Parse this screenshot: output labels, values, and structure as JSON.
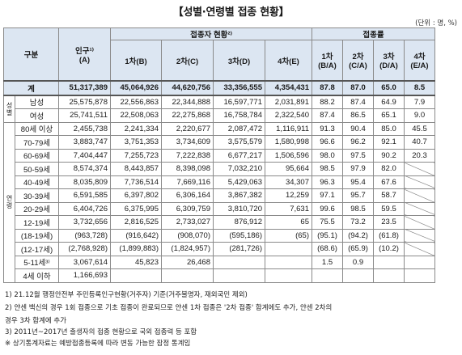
{
  "title": "【성별·연령별 접종 현황】",
  "unit": "(단위 : 명, %)",
  "headers": {
    "category": "구분",
    "population": "인구¹⁾",
    "population_sub": "(A)",
    "vaccinated_group": "접종자 현황²⁾",
    "rate_group": "접종률",
    "dose1": "1차(B)",
    "dose2": "2차(C)",
    "dose3": "3차(D)",
    "dose4": "4차(E)",
    "r1": "1차",
    "r1_sub": "(B/A)",
    "r2": "2차",
    "r2_sub": "(C/A)",
    "r3": "3차",
    "r3_sub": "(D/A)",
    "r4": "4차",
    "r4_sub": "(E/A)"
  },
  "groups": {
    "sex": "성별",
    "age": "연령"
  },
  "total": {
    "label": "계",
    "pop": "51,317,389",
    "d1": "45,064,926",
    "d2": "44,620,756",
    "d3": "33,356,555",
    "d4": "4,354,431",
    "r1": "87.8",
    "r2": "87.0",
    "r3": "65.0",
    "r4": "8.5"
  },
  "sex_rows": [
    {
      "label": "남성",
      "pop": "25,575,878",
      "d1": "22,556,863",
      "d2": "22,344,888",
      "d3": "16,597,771",
      "d4": "2,031,891",
      "r1": "88.2",
      "r2": "87.4",
      "r3": "64.9",
      "r4": "7.9"
    },
    {
      "label": "여성",
      "pop": "25,741,511",
      "d1": "22,508,063",
      "d2": "22,275,868",
      "d3": "16,758,784",
      "d4": "2,322,540",
      "r1": "87.4",
      "r2": "86.5",
      "r3": "65.1",
      "r4": "9.0"
    }
  ],
  "age_rows": [
    {
      "label": "80세 이상",
      "pop": "2,455,738",
      "d1": "2,241,334",
      "d2": "2,220,677",
      "d3": "2,087,472",
      "d4": "1,116,911",
      "r1": "91.3",
      "r2": "90.4",
      "r3": "85.0",
      "r4": "45.5"
    },
    {
      "label": "70-79세",
      "pop": "3,883,747",
      "d1": "3,751,353",
      "d2": "3,734,609",
      "d3": "3,575,579",
      "d4": "1,580,998",
      "r1": "96.6",
      "r2": "96.2",
      "r3": "92.1",
      "r4": "40.7"
    },
    {
      "label": "60-69세",
      "pop": "7,404,447",
      "d1": "7,255,723",
      "d2": "7,222,838",
      "d3": "6,677,217",
      "d4": "1,506,596",
      "r1": "98.0",
      "r2": "97.5",
      "r3": "90.2",
      "r4": "20.3"
    },
    {
      "label": "50-59세",
      "pop": "8,574,374",
      "d1": "8,443,857",
      "d2": "8,398,098",
      "d3": "7,032,210",
      "d4": "95,664",
      "r1": "98.5",
      "r2": "97.9",
      "r3": "82.0",
      "r4": ""
    },
    {
      "label": "40-49세",
      "pop": "8,035,809",
      "d1": "7,736,514",
      "d2": "7,669,116",
      "d3": "5,429,063",
      "d4": "34,307",
      "r1": "96.3",
      "r2": "95.4",
      "r3": "67.6",
      "r4": ""
    },
    {
      "label": "30-39세",
      "pop": "6,591,585",
      "d1": "6,397,802",
      "d2": "6,306,164",
      "d3": "3,867,382",
      "d4": "12,259",
      "r1": "97.1",
      "r2": "95.7",
      "r3": "58.7",
      "r4": ""
    },
    {
      "label": "20-29세",
      "pop": "6,404,726",
      "d1": "6,375,995",
      "d2": "6,309,759",
      "d3": "3,810,720",
      "d4": "7,631",
      "r1": "99.6",
      "r2": "98.5",
      "r3": "59.5",
      "r4": ""
    },
    {
      "label": "12-19세",
      "pop": "3,732,656",
      "d1": "2,816,525",
      "d2": "2,733,027",
      "d3": "876,912",
      "d4": "65",
      "r1": "75.5",
      "r2": "73.2",
      "r3": "23.5",
      "r4": ""
    },
    {
      "label": "(18-19세)",
      "pop": "(963,728)",
      "d1": "(916,642)",
      "d2": "(908,070)",
      "d3": "(595,186)",
      "d4": "(65)",
      "r1": "(95.1)",
      "r2": "(94.2)",
      "r3": "(61.8)",
      "r4": ""
    },
    {
      "label": "(12-17세)",
      "pop": "(2,768,928)",
      "d1": "(1,899,883)",
      "d2": "(1,824,957)",
      "d3": "(281,726)",
      "d4": "",
      "r1": "(68.6)",
      "r2": "(65.9)",
      "r3": "(10.2)",
      "r4": ""
    },
    {
      "label": "5-11세³⁾",
      "pop": "3,067,614",
      "d1": "45,823",
      "d2": "26,468",
      "d3": "",
      "d4": "",
      "r1": "1.5",
      "r2": "0.9",
      "r3": "",
      "r4": ""
    },
    {
      "label": "4세 이하",
      "pop": "1,166,693",
      "d1": "",
      "d2": "",
      "d3": "",
      "d4": "",
      "r1": "",
      "r2": "",
      "r3": "",
      "r4": ""
    }
  ],
  "footnotes": [
    "1)  21.12월 행정안전부 주민등록인구현황(거주자) 기준(거주불명자, 재외국민 제외)",
    "2)  얀센 백신의 경우 1회 접종으로 기초 접종이 완료되므로 얀센 1차 접종은 '2차 접종' 합계에도 추가, 얀센 2차의",
    "     경우 3차 합계에 추가",
    "3)  2011년~2017년 출생자의 접종 현황으로 국외 접종력 등 포함",
    "※ 상기통계자료는 예방접종등록에 따라 변동 가능한 잠정 통계임"
  ]
}
